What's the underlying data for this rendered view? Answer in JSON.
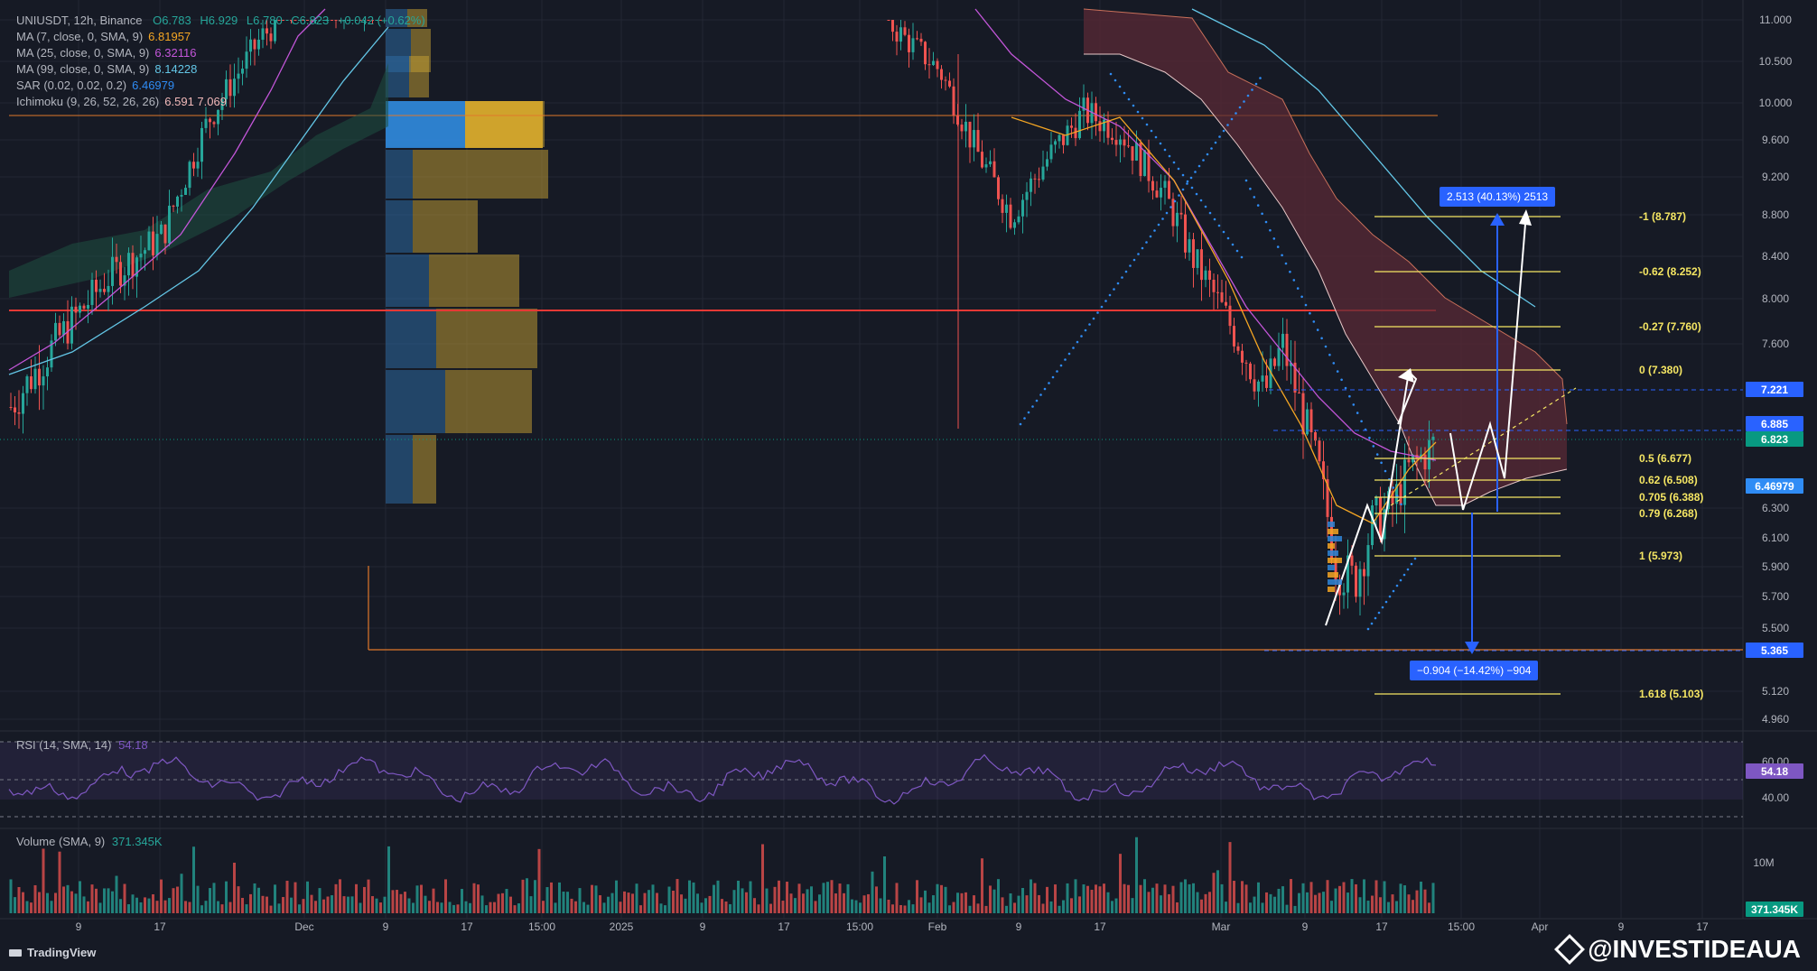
{
  "ticker": {
    "title": "UNIUSDT, 12h, Binance",
    "open": "O6.783",
    "high": "H6.929",
    "low": "L6.780",
    "close": "C6.823",
    "change": "+0.042 (+0.62%)"
  },
  "indicators": [
    {
      "label": "MA (7, close, 0, SMA, 9)",
      "value": "6.81957",
      "color": "#f5a623"
    },
    {
      "label": "MA (25, close, 0, SMA, 9)",
      "value": "6.32116",
      "color": "#c356d9"
    },
    {
      "label": "MA (99, close, 0, SMA, 9)",
      "value": "8.14228",
      "color": "#63c6e6"
    },
    {
      "label": "SAR (0.02, 0.02, 0.2)",
      "value": "6.46979",
      "color": "#2f8cf5"
    },
    {
      "label": "Ichimoku (9, 26, 52, 26, 26)",
      "value": "6.591  7.069",
      "color": "#f2b9b9"
    }
  ],
  "price_axis": {
    "ticks": [
      "11.000",
      "10.500",
      "10.000",
      "9.600",
      "9.200",
      "8.800",
      "8.400",
      "8.000",
      "7.600",
      "6.300",
      "6.100",
      "5.900",
      "5.700",
      "5.500",
      "5.120",
      "4.960"
    ],
    "badges": [
      {
        "text": "7.221",
        "color": "#2962ff"
      },
      {
        "text": "6.885",
        "color": "#2962ff"
      },
      {
        "text": "6.823",
        "color": "#089981"
      },
      {
        "text": "6.46979",
        "color": "#2f8cf5"
      },
      {
        "text": "5.365",
        "color": "#2962ff"
      }
    ]
  },
  "fib_levels": [
    {
      "label": "-1 (8.787)"
    },
    {
      "label": "-0.62 (8.252)"
    },
    {
      "label": "-0.27 (7.760)"
    },
    {
      "label": "0 (7.380)"
    },
    {
      "label": "0.5 (6.677)"
    },
    {
      "label": "0.62 (6.508)"
    },
    {
      "label": "0.705 (6.388)"
    },
    {
      "label": "0.79 (6.268)"
    },
    {
      "label": "1 (5.973)"
    },
    {
      "label": "1.618 (5.103)"
    }
  ],
  "measure_up": "2.513 (40.13%) 2513",
  "measure_down": "−0.904 (−14.42%) −904",
  "rsi": {
    "label": "RSI (14, SMA, 14)",
    "value": "54.18",
    "ticks": [
      "60.00",
      "40.00"
    ]
  },
  "volume": {
    "label": "Volume (SMA, 9)",
    "value": "371.345K",
    "tick": "10M"
  },
  "time_axis": [
    "9",
    "17",
    "Dec",
    "9",
    "17",
    "15:00",
    "2025",
    "9",
    "17",
    "15:00",
    "Feb",
    "9",
    "17",
    "Mar",
    "9",
    "17",
    "15:00",
    "Apr",
    "9",
    "17"
  ],
  "branding": {
    "app": "TradingView",
    "watermark": "@INVESTIDEAUA"
  },
  "colors": {
    "background": "#161a25",
    "up": "#26a69a",
    "down": "#ef5350",
    "fib": "#f5e663",
    "accent": "#2962ff"
  }
}
